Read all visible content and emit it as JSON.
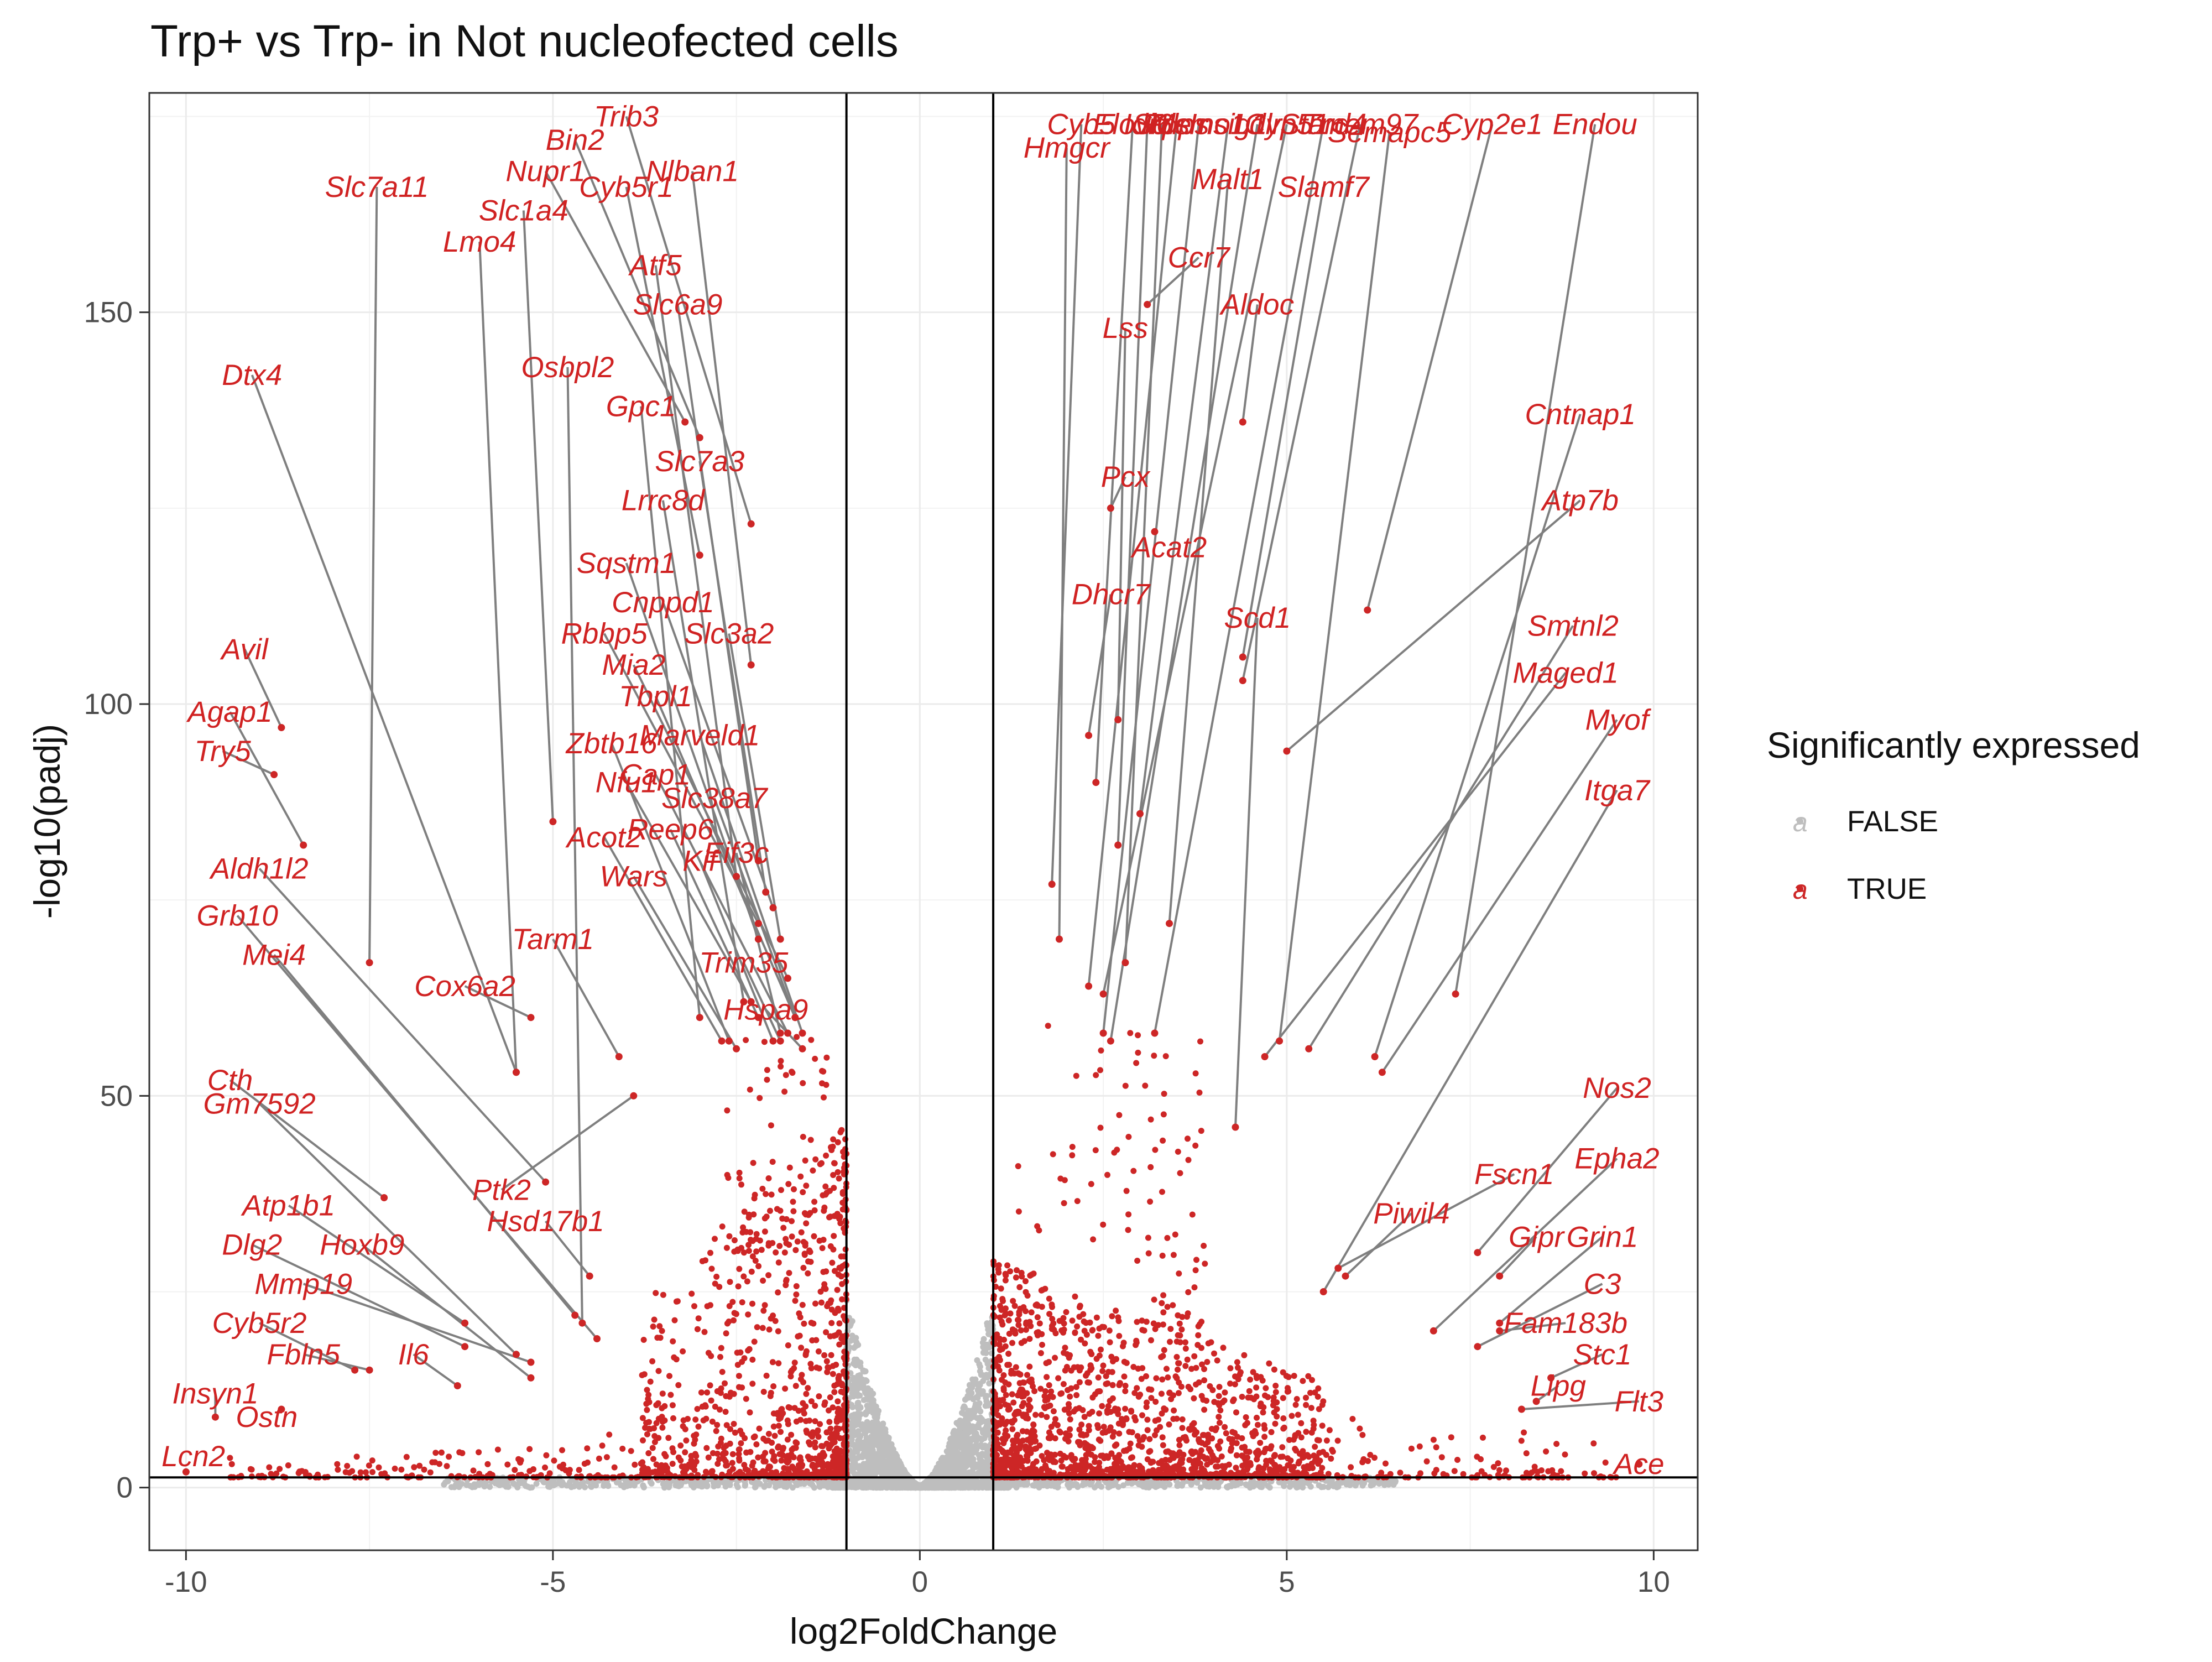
{
  "chart_data": {
    "type": "scatter",
    "title": "Trp+ vs Trp- in Not nucleofected cells",
    "xlabel": "log2FoldChange",
    "ylabel": "-log10(padj)",
    "xlim": [
      -10.5,
      10.6
    ],
    "ylim": [
      -8,
      178
    ],
    "xticks": [
      -10,
      -5,
      0,
      5,
      10
    ],
    "xtick_labels": [
      "-10",
      "-5",
      "0",
      "5",
      "10"
    ],
    "yticks": [
      0,
      50,
      100,
      150
    ],
    "ytick_labels": [
      "0",
      "50",
      "100",
      "150"
    ],
    "thresholds": {
      "log2fc": [
        -1,
        1
      ],
      "neg_log10_padj": 1.3
    },
    "grid": true,
    "legend": {
      "title": "Significantly expressed",
      "position": "right",
      "entries": [
        {
          "label": "FALSE",
          "color": "#bebebe",
          "key": "a"
        },
        {
          "label": "TRUE",
          "color": "#cd2626",
          "key": "a"
        }
      ]
    },
    "colors": {
      "significant": "#cd2626",
      "not_significant": "#bebebe",
      "label_text": "#d02222",
      "connector": "#7f7f7f"
    },
    "labeled_genes": [
      {
        "gene": "Trib3",
        "x": -2.3,
        "y": 123,
        "lx": -4.0,
        "ly": 175
      },
      {
        "gene": "Bin2",
        "x": -3.0,
        "y": 134,
        "lx": -4.7,
        "ly": 172
      },
      {
        "gene": "Nupr1",
        "x": -3.2,
        "y": 136,
        "lx": -5.1,
        "ly": 168
      },
      {
        "gene": "Nlban1",
        "x": -2.3,
        "y": 105,
        "lx": -3.1,
        "ly": 168
      },
      {
        "gene": "Slc7a11",
        "x": -7.5,
        "y": 67,
        "lx": -7.4,
        "ly": 166
      },
      {
        "gene": "Slc1a4",
        "x": -5.0,
        "y": 85,
        "lx": -5.4,
        "ly": 163
      },
      {
        "gene": "Cyb5r1",
        "x": -3.0,
        "y": 119,
        "lx": -4.0,
        "ly": 166
      },
      {
        "gene": "Lmo4",
        "x": -5.5,
        "y": 53,
        "lx": -6.0,
        "ly": 159
      },
      {
        "gene": "Atf5",
        "x": -2.5,
        "y": 78,
        "lx": -3.6,
        "ly": 156
      },
      {
        "gene": "Slc6a9",
        "x": -2.2,
        "y": 80,
        "lx": -3.3,
        "ly": 151
      },
      {
        "gene": "Osbpl2",
        "x": -4.6,
        "y": 21,
        "lx": -4.8,
        "ly": 143
      },
      {
        "gene": "Dtx4",
        "x": -5.5,
        "y": 53,
        "lx": -9.1,
        "ly": 142
      },
      {
        "gene": "Gpc1",
        "x": -3.0,
        "y": 60,
        "lx": -3.8,
        "ly": 138
      },
      {
        "gene": "Slc7a3",
        "x": -2.1,
        "y": 76,
        "lx": -3.0,
        "ly": 131
      },
      {
        "gene": "Lrrc8d",
        "x": -2.4,
        "y": 62,
        "lx": -3.5,
        "ly": 126
      },
      {
        "gene": "Sqstm1",
        "x": -2.2,
        "y": 70,
        "lx": -4.0,
        "ly": 118
      },
      {
        "gene": "Cnppd1",
        "x": -2.0,
        "y": 74,
        "lx": -3.5,
        "ly": 113
      },
      {
        "gene": "Rbbp5",
        "x": -2.2,
        "y": 72,
        "lx": -4.3,
        "ly": 109
      },
      {
        "gene": "Slc3a2",
        "x": -1.9,
        "y": 70,
        "lx": -2.6,
        "ly": 109
      },
      {
        "gene": "Mia2",
        "x": -1.8,
        "y": 65,
        "lx": -3.9,
        "ly": 105
      },
      {
        "gene": "Avil",
        "x": -8.7,
        "y": 97,
        "lx": -9.2,
        "ly": 107
      },
      {
        "gene": "Tbpl1",
        "x": -1.7,
        "y": 60,
        "lx": -3.6,
        "ly": 101
      },
      {
        "gene": "Agap1",
        "x": -8.4,
        "y": 82,
        "lx": -9.4,
        "ly": 99
      },
      {
        "gene": "Marveld1",
        "x": -1.6,
        "y": 58,
        "lx": -3.0,
        "ly": 96
      },
      {
        "gene": "Try5",
        "x": -8.8,
        "y": 91,
        "lx": -9.5,
        "ly": 94
      },
      {
        "gene": "Zbtb16",
        "x": -2.6,
        "y": 57,
        "lx": -4.2,
        "ly": 95
      },
      {
        "gene": "Cap1",
        "x": -1.8,
        "y": 58,
        "lx": -3.6,
        "ly": 91
      },
      {
        "gene": "Nfu1",
        "x": -2.3,
        "y": 62,
        "lx": -4.0,
        "ly": 90
      },
      {
        "gene": "Slc38a7",
        "x": -1.7,
        "y": 60,
        "lx": -2.8,
        "ly": 88
      },
      {
        "gene": "Acot2",
        "x": -2.7,
        "y": 57,
        "lx": -4.3,
        "ly": 83
      },
      {
        "gene": "Reep6",
        "x": -2.2,
        "y": 60,
        "lx": -3.4,
        "ly": 84
      },
      {
        "gene": "Eif3c",
        "x": -1.9,
        "y": 58,
        "lx": -2.5,
        "ly": 81
      },
      {
        "gene": "Kif",
        "x": -2.0,
        "y": 57,
        "lx": -3.0,
        "ly": 80
      },
      {
        "gene": "Wars",
        "x": -2.5,
        "y": 56,
        "lx": -3.9,
        "ly": 78
      },
      {
        "gene": "Aldh1l2",
        "x": -5.1,
        "y": 39,
        "lx": -9.0,
        "ly": 79
      },
      {
        "gene": "Grb10",
        "x": -4.4,
        "y": 19,
        "lx": -9.3,
        "ly": 73
      },
      {
        "gene": "Tarm1",
        "x": -4.1,
        "y": 55,
        "lx": -5.0,
        "ly": 70
      },
      {
        "gene": "Mei4",
        "x": -4.7,
        "y": 22,
        "lx": -8.8,
        "ly": 68
      },
      {
        "gene": "Trim35",
        "x": -1.9,
        "y": 57,
        "lx": -2.4,
        "ly": 67
      },
      {
        "gene": "Cox6a2",
        "x": -5.3,
        "y": 60,
        "lx": -6.2,
        "ly": 64
      },
      {
        "gene": "Hspa9",
        "x": -1.6,
        "y": 56,
        "lx": -2.1,
        "ly": 61
      },
      {
        "gene": "Cth",
        "x": -7.3,
        "y": 37,
        "lx": -9.4,
        "ly": 52
      },
      {
        "gene": "Gm7592",
        "x": -5.5,
        "y": 17,
        "lx": -9.0,
        "ly": 49
      },
      {
        "gene": "Atp1b1",
        "x": -6.2,
        "y": 21,
        "lx": -8.6,
        "ly": 36
      },
      {
        "gene": "Ptk2",
        "x": -3.9,
        "y": 50,
        "lx": -5.7,
        "ly": 38
      },
      {
        "gene": "Hsd17b1",
        "x": -4.5,
        "y": 27,
        "lx": -5.1,
        "ly": 34
      },
      {
        "gene": "Dlg2",
        "x": -6.2,
        "y": 18,
        "lx": -9.1,
        "ly": 31
      },
      {
        "gene": "Hoxb9",
        "x": -5.3,
        "y": 14,
        "lx": -7.6,
        "ly": 31
      },
      {
        "gene": "Mmp19",
        "x": -5.3,
        "y": 16,
        "lx": -8.4,
        "ly": 26
      },
      {
        "gene": "Cyb5r2",
        "x": -7.7,
        "y": 15,
        "lx": -9.0,
        "ly": 21
      },
      {
        "gene": "Il6",
        "x": -6.3,
        "y": 13,
        "lx": -6.9,
        "ly": 17
      },
      {
        "gene": "Fbln5",
        "x": -7.5,
        "y": 15,
        "lx": -8.4,
        "ly": 17
      },
      {
        "gene": "Insyn1",
        "x": -9.6,
        "y": 9,
        "lx": -9.6,
        "ly": 12
      },
      {
        "gene": "Ostn",
        "x": -8.7,
        "y": 10,
        "lx": -8.9,
        "ly": 9
      },
      {
        "gene": "Lcn2",
        "x": -10.0,
        "y": 2,
        "lx": -9.9,
        "ly": 4
      },
      {
        "gene": "Cyb5",
        "x": 1.8,
        "y": 77,
        "lx": 2.2,
        "ly": 174
      },
      {
        "gene": "Hmgcr",
        "x": 1.9,
        "y": 70,
        "lx": 2.0,
        "ly": 171
      },
      {
        "gene": "Elovl6",
        "x": 2.4,
        "y": 90,
        "lx": 2.9,
        "ly": 174
      },
      {
        "gene": "Idi1",
        "x": 2.7,
        "y": 82,
        "lx": 3.1,
        "ly": 174
      },
      {
        "gene": "Sqle",
        "x": 2.8,
        "y": 67,
        "lx": 3.3,
        "ly": 174
      },
      {
        "gene": "Fdps",
        "x": 2.3,
        "y": 64,
        "lx": 3.5,
        "ly": 174
      },
      {
        "gene": "Msmo1",
        "x": 2.5,
        "y": 58,
        "lx": 3.8,
        "ly": 174
      },
      {
        "gene": "Insig1",
        "x": 3.0,
        "y": 86,
        "lx": 4.2,
        "ly": 174
      },
      {
        "gene": "Ldlr",
        "x": 2.6,
        "y": 57,
        "lx": 4.6,
        "ly": 174
      },
      {
        "gene": "Cyp51",
        "x": 2.5,
        "y": 63,
        "lx": 5.0,
        "ly": 174
      },
      {
        "gene": "Stard4",
        "x": 3.2,
        "y": 58,
        "lx": 5.5,
        "ly": 174
      },
      {
        "gene": "Tmem97",
        "x": 4.4,
        "y": 103,
        "lx": 6.0,
        "ly": 174
      },
      {
        "gene": "Semapc5",
        "x": 4.9,
        "y": 57,
        "lx": 6.4,
        "ly": 173
      },
      {
        "gene": "Cyp2e1",
        "x": 6.1,
        "y": 112,
        "lx": 7.8,
        "ly": 174
      },
      {
        "gene": "Endou",
        "x": 7.3,
        "y": 63,
        "lx": 9.2,
        "ly": 174
      },
      {
        "gene": "Malt1",
        "x": 3.4,
        "y": 72,
        "lx": 4.2,
        "ly": 167
      },
      {
        "gene": "Slamf7",
        "x": 4.4,
        "y": 106,
        "lx": 5.5,
        "ly": 166
      },
      {
        "gene": "Ccr7",
        "x": 3.1,
        "y": 151,
        "lx": 3.8,
        "ly": 157
      },
      {
        "gene": "Aldoc",
        "x": 4.4,
        "y": 136,
        "lx": 4.6,
        "ly": 151
      },
      {
        "gene": "Lss",
        "x": 2.7,
        "y": 98,
        "lx": 2.8,
        "ly": 148
      },
      {
        "gene": "Cntnap1",
        "x": 6.2,
        "y": 55,
        "lx": 9.0,
        "ly": 137
      },
      {
        "gene": "Pcx",
        "x": 2.6,
        "y": 125,
        "lx": 2.8,
        "ly": 129
      },
      {
        "gene": "Atp7b",
        "x": 5.0,
        "y": 94,
        "lx": 9.0,
        "ly": 126
      },
      {
        "gene": "Acat2",
        "x": 3.2,
        "y": 122,
        "lx": 3.4,
        "ly": 120
      },
      {
        "gene": "Dhcr7",
        "x": 2.3,
        "y": 96,
        "lx": 2.6,
        "ly": 114
      },
      {
        "gene": "Scd1",
        "x": 4.3,
        "y": 46,
        "lx": 4.6,
        "ly": 111
      },
      {
        "gene": "Smtnl2",
        "x": 5.3,
        "y": 56,
        "lx": 8.9,
        "ly": 110
      },
      {
        "gene": "Maged1",
        "x": 4.7,
        "y": 55,
        "lx": 8.8,
        "ly": 104
      },
      {
        "gene": "Myof",
        "x": 6.3,
        "y": 53,
        "lx": 9.5,
        "ly": 98
      },
      {
        "gene": "Itga7",
        "x": 5.5,
        "y": 25,
        "lx": 9.5,
        "ly": 89
      },
      {
        "gene": "Nos2",
        "x": 7.6,
        "y": 30,
        "lx": 9.5,
        "ly": 51
      },
      {
        "gene": "Fscn1",
        "x": 5.7,
        "y": 28,
        "lx": 8.1,
        "ly": 40
      },
      {
        "gene": "Epha2",
        "x": 7.0,
        "y": 20,
        "lx": 9.5,
        "ly": 42
      },
      {
        "gene": "Piwil4",
        "x": 5.8,
        "y": 27,
        "lx": 6.7,
        "ly": 35
      },
      {
        "gene": "Gipr",
        "x": 7.9,
        "y": 27,
        "lx": 8.4,
        "ly": 32
      },
      {
        "gene": "Grin1",
        "x": 7.9,
        "y": 21,
        "lx": 9.3,
        "ly": 32
      },
      {
        "gene": "C3",
        "x": 7.6,
        "y": 18,
        "lx": 9.3,
        "ly": 26
      },
      {
        "gene": "Fam183b",
        "x": 7.9,
        "y": 20,
        "lx": 8.8,
        "ly": 21
      },
      {
        "gene": "Stc1",
        "x": 8.6,
        "y": 14,
        "lx": 9.3,
        "ly": 17
      },
      {
        "gene": "Lipg",
        "x": 8.4,
        "y": 11,
        "lx": 8.7,
        "ly": 13
      },
      {
        "gene": "Flt3",
        "x": 8.2,
        "y": 10,
        "lx": 9.8,
        "ly": 11
      },
      {
        "gene": "Ace",
        "x": 9.8,
        "y": 3,
        "lx": 9.8,
        "ly": 3
      }
    ]
  }
}
